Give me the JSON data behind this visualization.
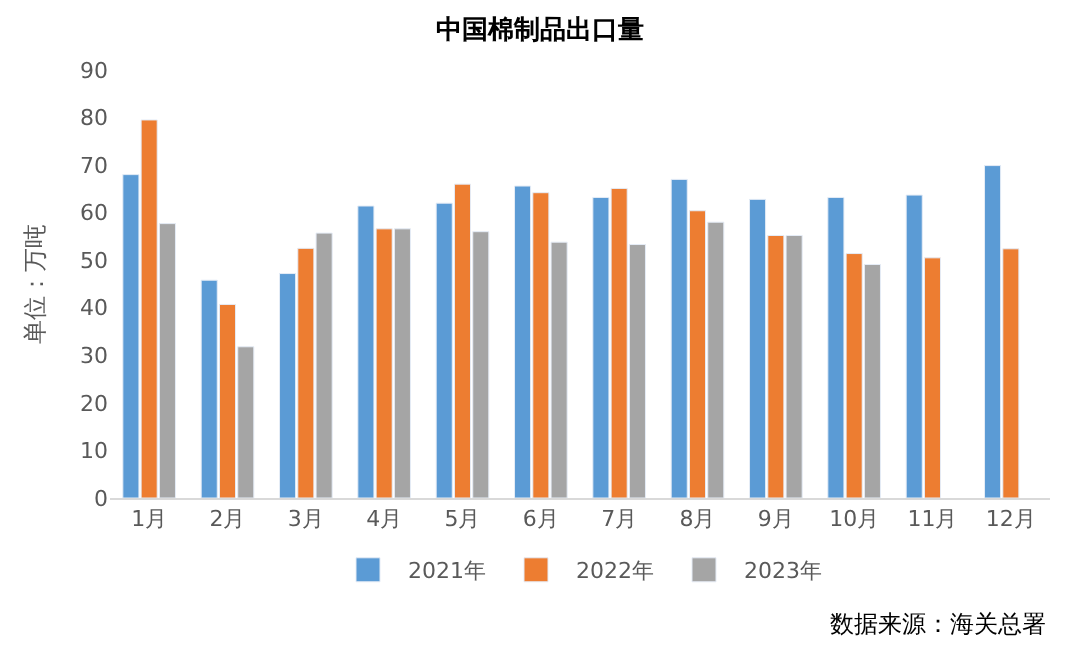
{
  "chart_data": {
    "type": "bar",
    "title": "中国棉制品出口量",
    "ylabel": "单位：万吨",
    "categories": [
      "1月",
      "2月",
      "3月",
      "4月",
      "5月",
      "6月",
      "7月",
      "8月",
      "9月",
      "10月",
      "11月",
      "12月"
    ],
    "series": [
      {
        "name": "2021年",
        "color": "#5b9bd5",
        "values": [
          68,
          45.8,
          47.2,
          61.4,
          62,
          65.6,
          63.2,
          67,
          62.8,
          63.2,
          63.7,
          69.9
        ]
      },
      {
        "name": "2022年",
        "color": "#ed7d31",
        "values": [
          79.5,
          40.7,
          52.5,
          56.6,
          66,
          64.2,
          65.1,
          60.4,
          55.2,
          51.4,
          50.5,
          52.4
        ]
      },
      {
        "name": "2023年",
        "color": "#a5a5a5",
        "values": [
          57.7,
          31.8,
          55.7,
          56.6,
          56,
          53.8,
          53.3,
          58,
          55.2,
          49.1,
          null,
          null
        ]
      }
    ],
    "ylim": [
      0,
      90
    ],
    "yticks": [
      0,
      10,
      20,
      30,
      40,
      50,
      60,
      70,
      80,
      90
    ],
    "legend": "bottom",
    "annotations": [
      "数据来源：海关总署"
    ]
  }
}
